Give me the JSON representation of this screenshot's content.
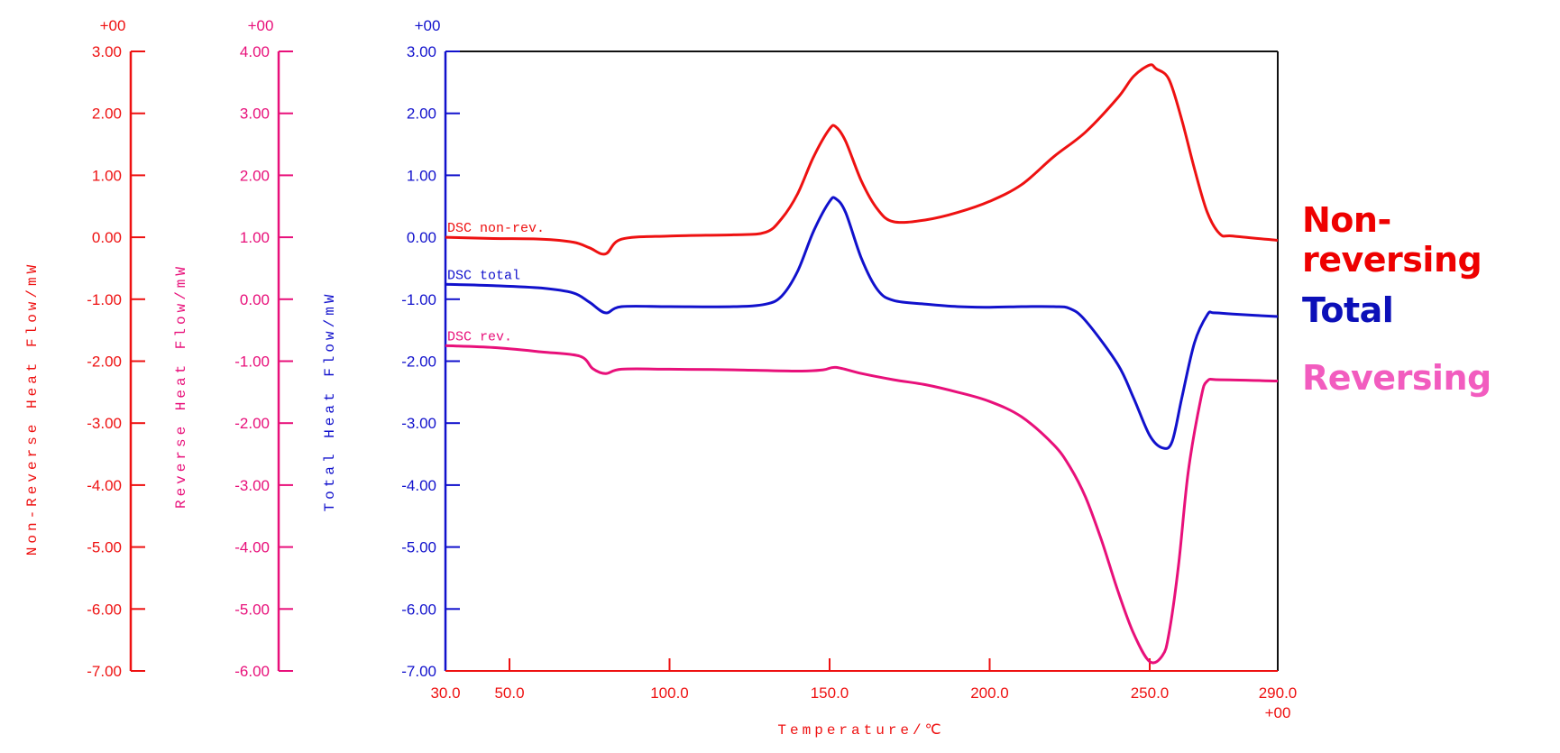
{
  "chart_data": {
    "type": "line",
    "title": "",
    "xlabel": "Temperature/℃",
    "x_ticks": [
      30.0,
      50.0,
      100.0,
      150.0,
      200.0,
      250.0,
      290.0
    ],
    "x_tick_labels": [
      "30.0",
      "50.0",
      "100.0",
      "150.0",
      "200.0",
      "250.0",
      "290.0"
    ],
    "x_exponent": "+00",
    "xlim": [
      30,
      290
    ],
    "grid": false,
    "legend_position": "right",
    "y_axes": [
      {
        "id": "nonrev",
        "label": "Non-Reverse Heat Flow/mW",
        "color": "#ee1111",
        "ylim": [
          -7,
          3
        ],
        "ticks": [
          "3.00",
          "2.00",
          "1.00",
          "0.00",
          "-1.00",
          "-2.00",
          "-3.00",
          "-4.00",
          "-5.00",
          "-6.00",
          "-7.00"
        ],
        "exponent": "+00"
      },
      {
        "id": "rev",
        "label": "Reverse Heat Flow/mW",
        "color": "#e8107a",
        "ylim": [
          -6,
          4
        ],
        "ticks": [
          "4.00",
          "3.00",
          "2.00",
          "1.00",
          "0.00",
          "-1.00",
          "-2.00",
          "-3.00",
          "-4.00",
          "-5.00",
          "-6.00"
        ],
        "exponent": "+00"
      },
      {
        "id": "total",
        "label": "Total Heat Flow/mW",
        "color": "#1111cc",
        "ylim": [
          -7,
          3
        ],
        "ticks": [
          "3.00",
          "2.00",
          "1.00",
          "0.00",
          "-1.00",
          "-2.00",
          "-3.00",
          "-4.00",
          "-5.00",
          "-6.00",
          "-7.00"
        ],
        "exponent": "+00"
      }
    ],
    "series": [
      {
        "name": "DSC non-rev.",
        "axis": "nonrev",
        "color": "#ee1111",
        "x": [
          30,
          45,
          60,
          70,
          75,
          80,
          85,
          100,
          120,
          130,
          135,
          140,
          145,
          150,
          152,
          155,
          160,
          165,
          170,
          180,
          190,
          200,
          210,
          220,
          230,
          240,
          245,
          250,
          252,
          256,
          260,
          264,
          268,
          272,
          276,
          290
        ],
        "y": [
          0.0,
          -0.02,
          -0.03,
          -0.08,
          -0.17,
          -0.27,
          -0.03,
          0.02,
          0.04,
          0.08,
          0.3,
          0.7,
          1.3,
          1.75,
          1.78,
          1.55,
          0.9,
          0.45,
          0.25,
          0.28,
          0.4,
          0.58,
          0.85,
          1.3,
          1.7,
          2.25,
          2.6,
          2.78,
          2.72,
          2.55,
          1.9,
          1.1,
          0.4,
          0.05,
          0.02,
          -0.05
        ]
      },
      {
        "name": "DSC total",
        "axis": "total",
        "color": "#1111cc",
        "x": [
          30,
          45,
          60,
          70,
          75,
          80,
          85,
          100,
          120,
          130,
          135,
          140,
          145,
          150,
          152,
          155,
          160,
          165,
          170,
          180,
          190,
          200,
          210,
          220,
          225,
          230,
          240,
          245,
          250,
          254,
          257,
          260,
          264,
          268,
          270,
          276,
          290
        ],
        "y": [
          -0.76,
          -0.78,
          -0.82,
          -0.9,
          -1.05,
          -1.22,
          -1.12,
          -1.12,
          -1.12,
          -1.08,
          -0.95,
          -0.55,
          0.1,
          0.58,
          0.62,
          0.4,
          -0.35,
          -0.85,
          -1.02,
          -1.08,
          -1.12,
          -1.13,
          -1.12,
          -1.12,
          -1.15,
          -1.35,
          -2.05,
          -2.6,
          -3.2,
          -3.4,
          -3.3,
          -2.6,
          -1.7,
          -1.25,
          -1.22,
          -1.24,
          -1.28
        ]
      },
      {
        "name": "DSC rev.",
        "axis": "rev",
        "color": "#e8107a",
        "x": [
          30,
          45,
          60,
          72,
          76,
          80,
          85,
          100,
          120,
          140,
          148,
          152,
          160,
          170,
          180,
          190,
          200,
          210,
          220,
          225,
          230,
          235,
          240,
          245,
          250,
          254,
          256,
          259,
          262,
          266,
          268,
          272,
          290
        ],
        "y": [
          -0.75,
          -0.78,
          -0.85,
          -0.92,
          -1.12,
          -1.2,
          -1.13,
          -1.13,
          -1.14,
          -1.16,
          -1.14,
          -1.1,
          -1.2,
          -1.3,
          -1.38,
          -1.5,
          -1.65,
          -1.9,
          -2.35,
          -2.7,
          -3.2,
          -3.9,
          -4.7,
          -5.4,
          -5.85,
          -5.75,
          -5.4,
          -4.3,
          -2.8,
          -1.6,
          -1.32,
          -1.3,
          -1.32
        ]
      }
    ],
    "annotations": [
      "DSC non-rev.",
      "DSC total",
      "DSC rev."
    ],
    "legend": [
      {
        "label": "Non-reversing",
        "color": "#ee0000"
      },
      {
        "label": "Total",
        "color": "#0c10b8"
      },
      {
        "label": "Reversing",
        "color": "#f25cbf"
      }
    ]
  }
}
